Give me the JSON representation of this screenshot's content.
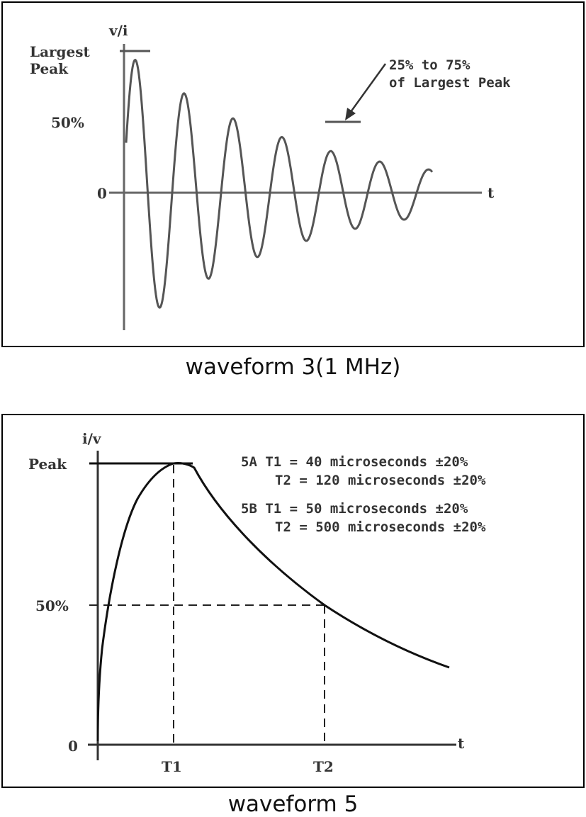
{
  "waveform3": {
    "caption": "waveform 3(1 MHz)",
    "y_axis_label": "v/i",
    "x_axis_label": "t",
    "largest_peak_line1": "Largest",
    "largest_peak_line2": "Peak",
    "half_label": "50%",
    "zero_label": "0",
    "annotation_line1": "25% to 75%",
    "annotation_line2": "of Largest Peak",
    "colors": {
      "curve": "#555555",
      "axis": "#666666"
    }
  },
  "waveform5": {
    "caption": "waveform 5",
    "y_axis_label": "i/v",
    "x_axis_label": "t",
    "peak_label": "Peak",
    "half_label": "50%",
    "zero_label": "0",
    "t1_label": "T1",
    "t2_label": "T2",
    "spec_5a_line1": "5A  T1 = 40 microseconds ±20%",
    "spec_5a_line2": "T2 = 120 microseconds ±20%",
    "spec_5b_line1": "5B  T1 = 50 microseconds ±20%",
    "spec_5b_line2": "T2 = 500 microseconds ±20%",
    "colors": {
      "curve": "#111111",
      "axis": "#333333"
    }
  }
}
